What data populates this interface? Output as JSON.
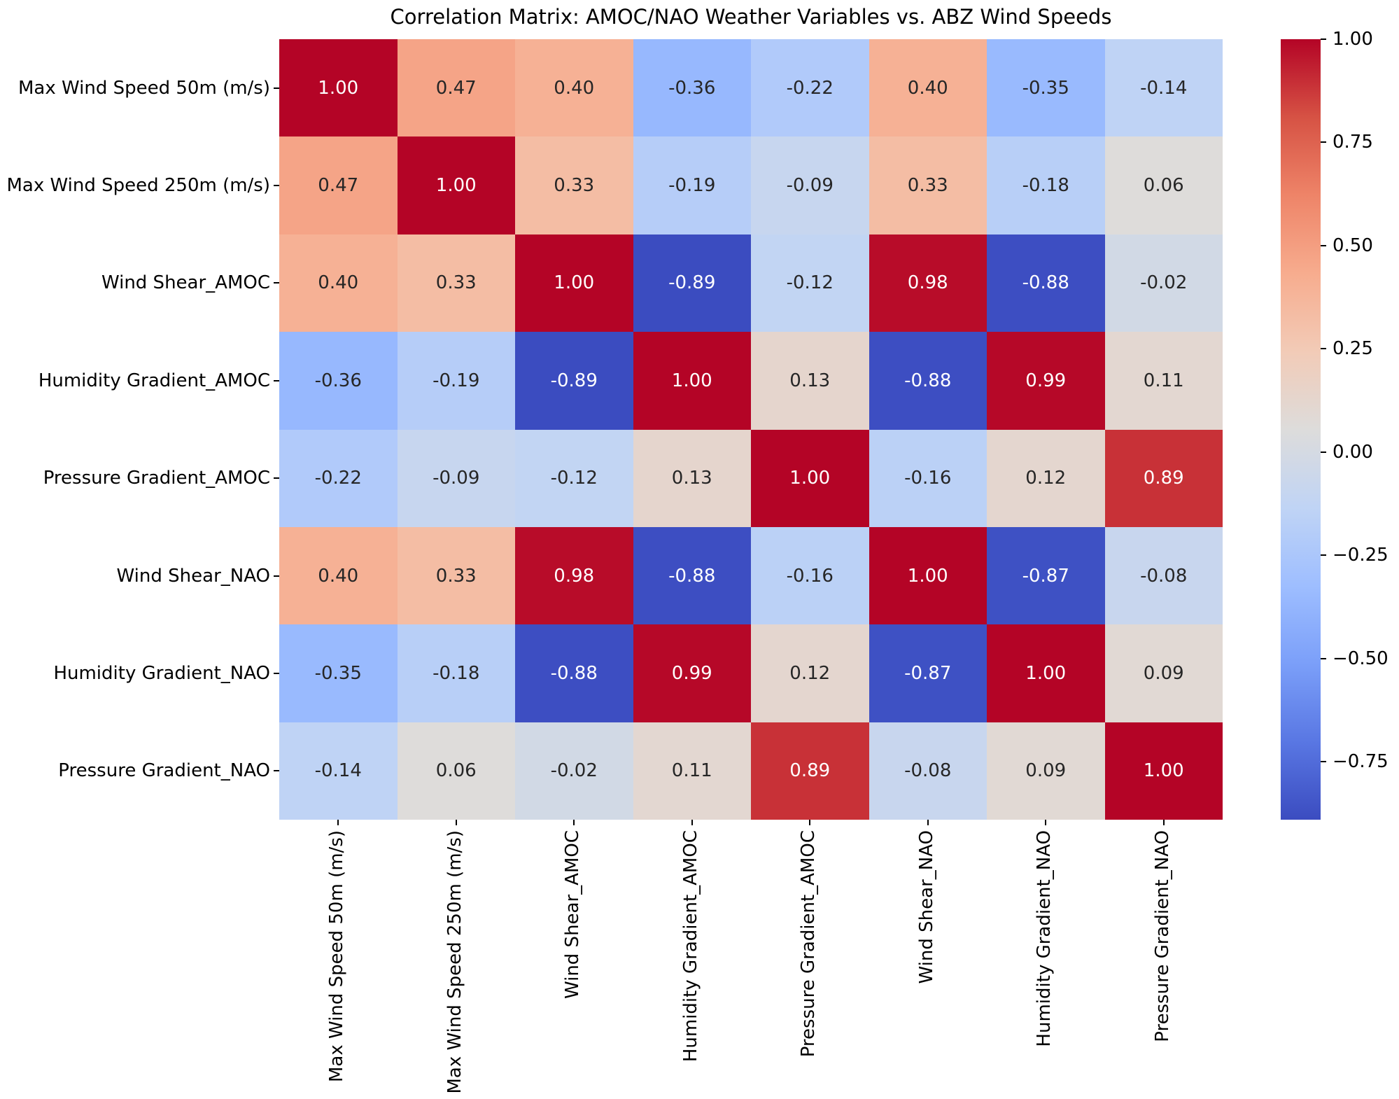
{
  "figure": {
    "background": "#ffffff"
  },
  "chart_data": {
    "type": "heatmap",
    "title": "Correlation Matrix: AMOC/NAO Weather Variables vs. ABZ Wind Speeds",
    "variables": [
      "Max Wind Speed 50m (m/s)",
      "Max Wind Speed 250m (m/s)",
      "Wind Shear_AMOC",
      "Humidity Gradient_AMOC",
      "Pressure Gradient_AMOC",
      "Wind Shear_NAO",
      "Humidity Gradient_NAO",
      "Pressure Gradient_NAO"
    ],
    "matrix": [
      [
        1.0,
        0.47,
        0.4,
        -0.36,
        -0.22,
        0.4,
        -0.35,
        -0.14
      ],
      [
        0.47,
        1.0,
        0.33,
        -0.19,
        -0.09,
        0.33,
        -0.18,
        0.06
      ],
      [
        0.4,
        0.33,
        1.0,
        -0.89,
        -0.12,
        0.98,
        -0.88,
        -0.02
      ],
      [
        -0.36,
        -0.19,
        -0.89,
        1.0,
        0.13,
        -0.88,
        0.99,
        0.11
      ],
      [
        -0.22,
        -0.09,
        -0.12,
        0.13,
        1.0,
        -0.16,
        0.12,
        0.89
      ],
      [
        0.4,
        0.33,
        0.98,
        -0.88,
        -0.16,
        1.0,
        -0.87,
        -0.08
      ],
      [
        -0.35,
        -0.18,
        -0.88,
        0.99,
        0.12,
        -0.87,
        1.0,
        0.09
      ],
      [
        -0.14,
        0.06,
        -0.02,
        0.11,
        0.89,
        -0.08,
        0.09,
        1.0
      ]
    ],
    "value_format_decimals": 2,
    "colorbar": {
      "position": "right",
      "vmin": -0.89,
      "vmax": 1.0,
      "tick_values": [
        1.0,
        0.75,
        0.5,
        0.25,
        0.0,
        -0.25,
        -0.5,
        -0.75
      ],
      "tick_labels": [
        "1.00",
        "0.75",
        "0.50",
        "0.25",
        "0.00",
        "−0.25",
        "−0.50",
        "−0.75"
      ]
    },
    "colormap": {
      "name": "coolwarm",
      "anchors": [
        "#3b4cc0",
        "#5977e3",
        "#7b9ff9",
        "#9ebeff",
        "#c0d4f5",
        "#dddcdb",
        "#f2cbb7",
        "#f7ac8e",
        "#ee8468",
        "#d65244",
        "#b40426"
      ]
    },
    "annotation_colors": {
      "on_dark": "#ffffff",
      "on_light": "#262626",
      "luminance_threshold": 0.408
    },
    "axes": {
      "x_tick_rotation_deg": 90,
      "grid": false
    }
  }
}
